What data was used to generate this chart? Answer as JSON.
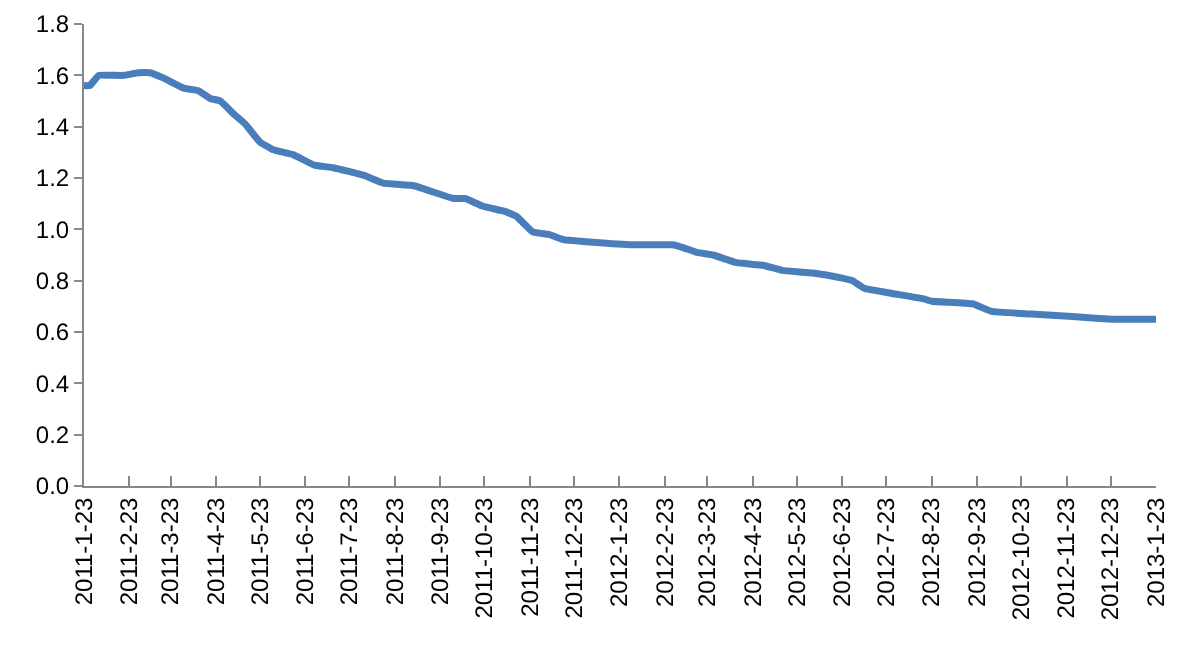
{
  "chart_data": {
    "type": "line",
    "grid": false,
    "marker": "none",
    "line_style": "solid",
    "x": [
      "2011-01-23",
      "2011-01-27",
      "2011-02-02",
      "2011-02-12",
      "2011-02-19",
      "2011-03-01",
      "2011-03-09",
      "2011-03-18",
      "2011-04-01",
      "2011-04-11",
      "2011-04-19",
      "2011-04-26",
      "2011-05-05",
      "2011-05-13",
      "2011-05-23",
      "2011-06-01",
      "2011-06-15",
      "2011-06-29",
      "2011-07-12",
      "2011-08-02",
      "2011-08-15",
      "2011-09-05",
      "2011-09-21",
      "2011-10-02",
      "2011-10-10",
      "2011-10-22",
      "2011-11-06",
      "2011-11-14",
      "2011-11-25",
      "2011-12-06",
      "2011-12-16",
      "2012-01-05",
      "2012-02-01",
      "2012-02-28",
      "2012-03-06",
      "2012-03-16",
      "2012-03-27",
      "2012-04-12",
      "2012-04-30",
      "2012-05-13",
      "2012-06-03",
      "2012-06-23",
      "2012-06-30",
      "2012-07-08",
      "2012-07-27",
      "2012-08-17",
      "2012-08-23",
      "2012-09-20",
      "2012-10-03",
      "2012-10-30",
      "2012-11-27",
      "2012-12-24",
      "2013-01-23"
    ],
    "series": [
      {
        "color": "#4a7ebb",
        "values": [
          1.56,
          1.56,
          1.6,
          1.6,
          1.6,
          1.61,
          1.61,
          1.59,
          1.55,
          1.54,
          1.51,
          1.5,
          1.45,
          1.41,
          1.34,
          1.31,
          1.29,
          1.25,
          1.24,
          1.21,
          1.18,
          1.17,
          1.14,
          1.12,
          1.12,
          1.09,
          1.07,
          1.05,
          0.99,
          0.98,
          0.96,
          0.95,
          0.94,
          0.94,
          0.93,
          0.91,
          0.9,
          0.87,
          0.86,
          0.84,
          0.83,
          0.81,
          0.8,
          0.77,
          0.75,
          0.73,
          0.72,
          0.71,
          0.68,
          0.67,
          0.66,
          0.65,
          0.65
        ]
      }
    ],
    "xlim": [
      "2011-01-23",
      "2013-01-23"
    ],
    "xticks": [
      {
        "value": "2011-01-23",
        "label": "2011-1-23"
      },
      {
        "value": "2011-02-23",
        "label": "2011-2-23"
      },
      {
        "value": "2011-03-23",
        "label": "2011-3-23"
      },
      {
        "value": "2011-04-23",
        "label": "2011-4-23"
      },
      {
        "value": "2011-05-23",
        "label": "2011-5-23"
      },
      {
        "value": "2011-06-23",
        "label": "2011-6-23"
      },
      {
        "value": "2011-07-23",
        "label": "2011-7-23"
      },
      {
        "value": "2011-08-23",
        "label": "2011-8-23"
      },
      {
        "value": "2011-09-23",
        "label": "2011-9-23"
      },
      {
        "value": "2011-10-23",
        "label": "2011-10-23"
      },
      {
        "value": "2011-11-23",
        "label": "2011-11-23"
      },
      {
        "value": "2011-12-23",
        "label": "2011-12-23"
      },
      {
        "value": "2012-01-23",
        "label": "2012-1-23"
      },
      {
        "value": "2012-02-23",
        "label": "2012-2-23"
      },
      {
        "value": "2012-03-23",
        "label": "2012-3-23"
      },
      {
        "value": "2012-04-23",
        "label": "2012-4-23"
      },
      {
        "value": "2012-05-23",
        "label": "2012-5-23"
      },
      {
        "value": "2012-06-23",
        "label": "2012-6-23"
      },
      {
        "value": "2012-07-23",
        "label": "2012-7-23"
      },
      {
        "value": "2012-08-23",
        "label": "2012-8-23"
      },
      {
        "value": "2012-09-23",
        "label": "2012-9-23"
      },
      {
        "value": "2012-10-23",
        "label": "2012-10-23"
      },
      {
        "value": "2012-11-23",
        "label": "2012-11-23"
      },
      {
        "value": "2012-12-23",
        "label": "2012-12-23"
      },
      {
        "value": "2013-01-23",
        "label": "2013-1-23"
      }
    ],
    "ylim": [
      0,
      1.8
    ],
    "yticks": [
      {
        "value": 0,
        "label": "0.0"
      },
      {
        "value": 0.2,
        "label": "0.2"
      },
      {
        "value": 0.4,
        "label": "0.4"
      },
      {
        "value": 0.6,
        "label": "0.6"
      },
      {
        "value": 0.8,
        "label": "0.8"
      },
      {
        "value": 1,
        "label": "1.0"
      },
      {
        "value": 1.2,
        "label": "1.2"
      },
      {
        "value": 1.4,
        "label": "1.4"
      },
      {
        "value": 1.6,
        "label": "1.6"
      },
      {
        "value": 1.8,
        "label": "1.8"
      }
    ]
  }
}
